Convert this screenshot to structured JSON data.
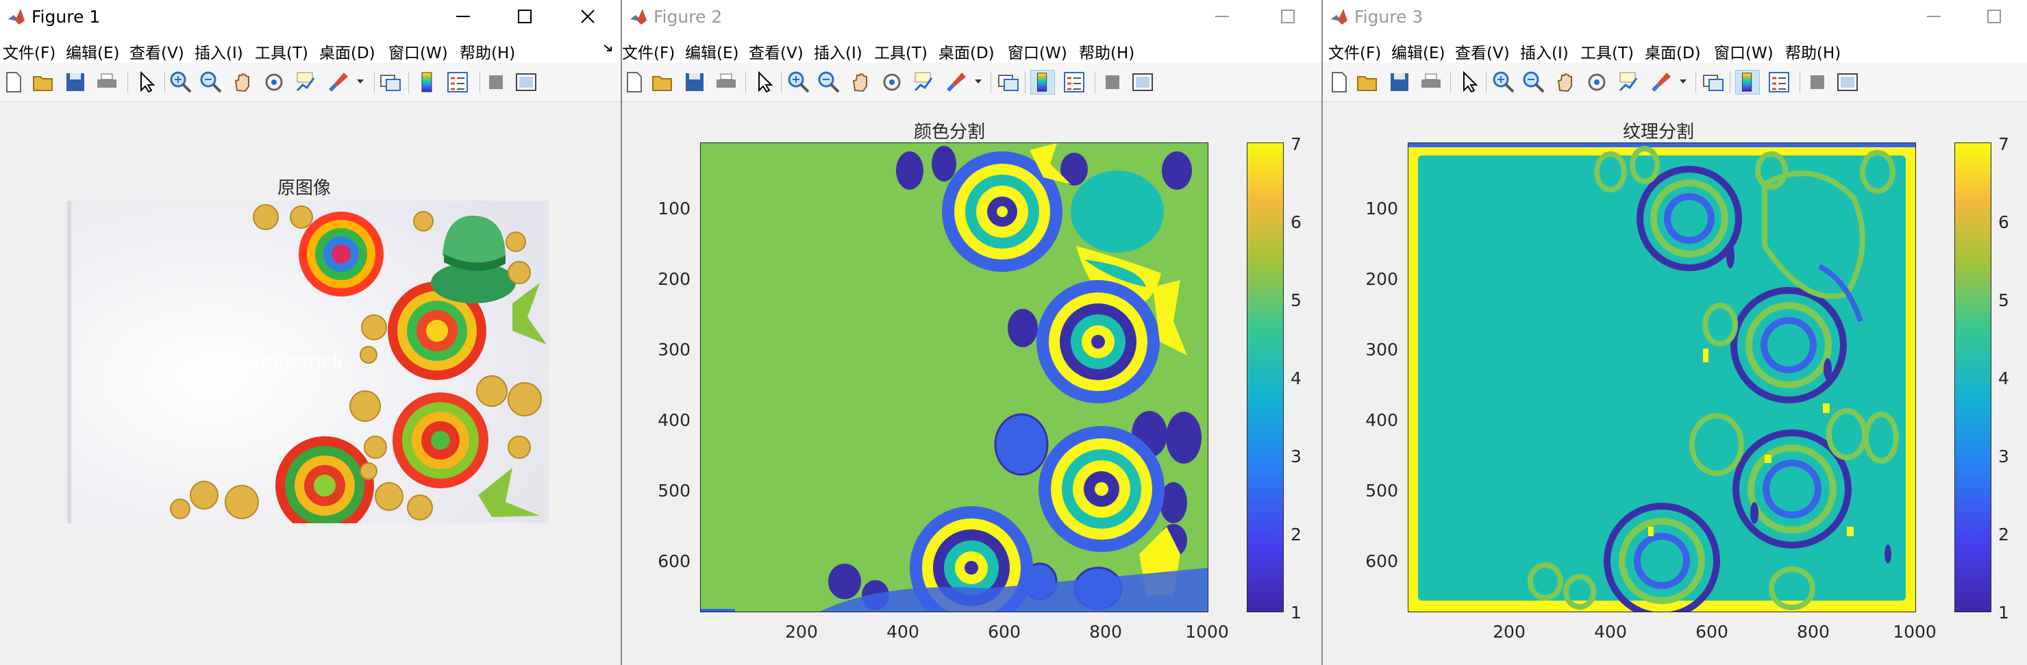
{
  "menu": [
    "文件(F)",
    "编辑(E)",
    "查看(V)",
    "插入(I)",
    "工具(T)",
    "桌面(D)",
    "窗口(W)",
    "帮助(H)"
  ],
  "colors": {
    "green": "#7ec853",
    "teal": "#1bbfb0",
    "navy": "#3b2fa8",
    "blue": "#3a62e6",
    "yellow": "#f9f618",
    "colorbar_top": "#f9fb0e",
    "colorbar_bottom": "#3e26a8"
  },
  "icons": [
    "matlab-logo-icon",
    "new-figure-icon",
    "open-file-icon",
    "save-icon",
    "print-icon",
    "pointer-icon",
    "zoom-in-icon",
    "zoom-out-icon",
    "pan-hand-icon",
    "rotate-3d-icon",
    "data-cursor-icon",
    "brush-icon",
    "colorbar-icon",
    "legend-icon",
    "hide-plot-tools-icon",
    "show-plot-tools-icon",
    "link-plot-icon",
    "minimize-icon",
    "maximize-icon",
    "close-icon"
  ],
  "figure1": {
    "window_title": "Figure 1",
    "axes_title": "原图像",
    "watermark": "Shutterstock"
  },
  "figure2": {
    "window_title": "Figure 2",
    "axes_title": "颜色分割",
    "chart_data": {
      "type": "heatmap",
      "title": "颜色分割",
      "x_ticks": [
        200,
        400,
        600,
        800,
        1000
      ],
      "y_ticks": [
        100,
        200,
        300,
        400,
        500,
        600
      ],
      "xlim": [
        1,
        1000
      ],
      "ylim": [
        1,
        667
      ],
      "y_direction": "reversed",
      "colorbar_ticks": [
        1,
        2,
        3,
        4,
        5,
        6,
        7
      ],
      "colorbar_range": [
        1,
        7
      ],
      "colormap": "parula"
    }
  },
  "figure3": {
    "window_title": "Figure 3",
    "axes_title": "纹理分割",
    "chart_data": {
      "type": "heatmap",
      "title": "纹理分割",
      "x_ticks": [
        200,
        400,
        600,
        800,
        1000
      ],
      "y_ticks": [
        100,
        200,
        300,
        400,
        500,
        600
      ],
      "xlim": [
        1,
        1000
      ],
      "ylim": [
        1,
        667
      ],
      "y_direction": "reversed",
      "colorbar_ticks": [
        1,
        2,
        3,
        4,
        5,
        6,
        7
      ],
      "colorbar_range": [
        1,
        7
      ],
      "colormap": "parula"
    }
  }
}
